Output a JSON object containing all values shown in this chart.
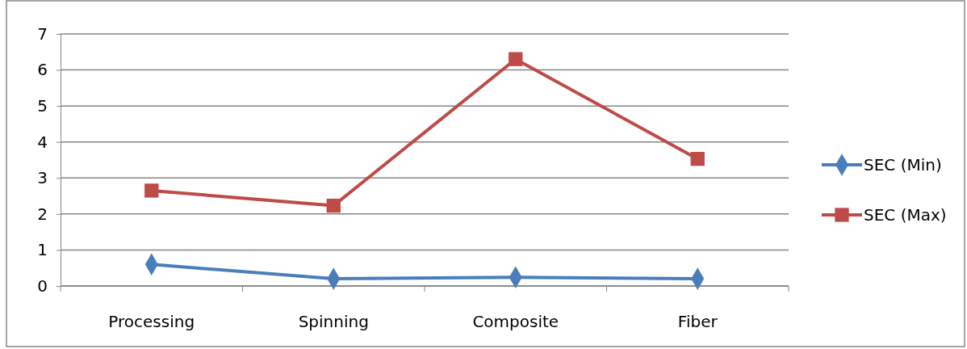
{
  "chart_data": {
    "type": "line",
    "categories": [
      "Processing",
      "Spinning",
      "Composite",
      "Fiber"
    ],
    "series": [
      {
        "name": "SEC (Min)",
        "color": "#4a7ebb",
        "marker": "diamond",
        "values": [
          0.6,
          0.2,
          0.24,
          0.2
        ]
      },
      {
        "name": "SEC (Max)",
        "color": "#be4b48",
        "marker": "square",
        "values": [
          2.65,
          2.23,
          6.3,
          3.53
        ]
      }
    ],
    "ylim": [
      0,
      7
    ],
    "yticks": [
      0,
      1,
      2,
      3,
      4,
      5,
      6,
      7
    ],
    "grid": "y",
    "legend": "right",
    "line_style": "solid"
  }
}
